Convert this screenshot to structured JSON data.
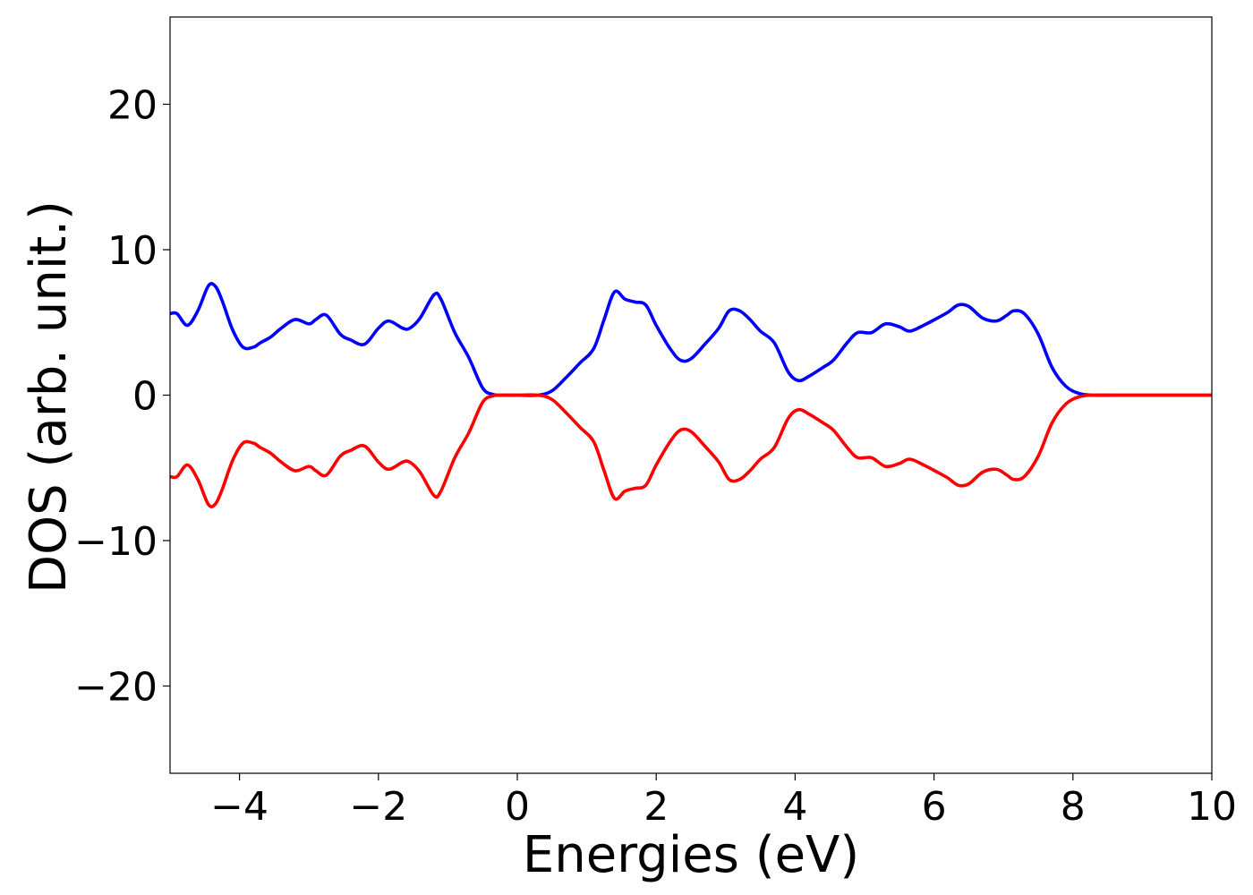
{
  "chart_data": {
    "type": "line",
    "title": "",
    "xlabel": "Energies (eV)",
    "ylabel": "DOS (arb. unit.)",
    "xlim": [
      -5,
      10
    ],
    "ylim": [
      -26,
      26
    ],
    "xticks": [
      -4,
      -2,
      0,
      2,
      4,
      6,
      8,
      10
    ],
    "xtick_labels": [
      "−4",
      "−2",
      "0",
      "2",
      "4",
      "6",
      "8",
      "10"
    ],
    "yticks": [
      20,
      10,
      0,
      -10,
      -20
    ],
    "ytick_labels": [
      "20",
      "10",
      "0",
      "−10",
      "−20"
    ],
    "grid": false,
    "legend": "none",
    "series": [
      {
        "color": "#0000ff",
        "x": [
          -5.0,
          -4.9,
          -4.75,
          -4.6,
          -4.45,
          -4.35,
          -4.25,
          -4.1,
          -3.95,
          -3.8,
          -3.7,
          -3.55,
          -3.4,
          -3.2,
          -3.0,
          -2.9,
          -2.75,
          -2.55,
          -2.4,
          -2.2,
          -2.0,
          -1.85,
          -1.65,
          -1.55,
          -1.4,
          -1.2,
          -1.1,
          -0.9,
          -0.7,
          -0.5,
          -0.35,
          -0.2,
          0.0,
          0.3,
          0.5,
          0.7,
          0.9,
          1.1,
          1.25,
          1.4,
          1.55,
          1.7,
          1.85,
          2.0,
          2.2,
          2.35,
          2.5,
          2.7,
          2.9,
          3.05,
          3.2,
          3.35,
          3.5,
          3.7,
          3.9,
          4.05,
          4.2,
          4.4,
          4.55,
          4.75,
          4.9,
          5.1,
          5.3,
          5.5,
          5.65,
          5.85,
          6.05,
          6.2,
          6.35,
          6.5,
          6.7,
          6.9,
          7.05,
          7.15,
          7.3,
          7.5,
          7.7,
          7.9,
          8.1,
          8.3,
          8.6,
          9.0,
          9.5,
          10.0
        ],
        "y": [
          5.6,
          5.6,
          4.8,
          5.8,
          7.5,
          7.5,
          6.5,
          4.5,
          3.3,
          3.3,
          3.6,
          4.0,
          4.6,
          5.2,
          4.9,
          5.2,
          5.5,
          4.2,
          3.8,
          3.5,
          4.6,
          5.1,
          4.6,
          4.6,
          5.3,
          6.9,
          6.6,
          4.3,
          2.6,
          0.5,
          0.05,
          0.0,
          0.0,
          0.0,
          0.3,
          1.2,
          2.2,
          3.2,
          5.2,
          7.1,
          6.6,
          6.4,
          6.2,
          4.8,
          3.2,
          2.4,
          2.5,
          3.5,
          4.6,
          5.8,
          5.8,
          5.2,
          4.4,
          3.6,
          1.6,
          1.0,
          1.3,
          1.9,
          2.4,
          3.6,
          4.3,
          4.3,
          4.9,
          4.7,
          4.4,
          4.8,
          5.3,
          5.7,
          6.2,
          6.1,
          5.3,
          5.1,
          5.5,
          5.8,
          5.6,
          4.2,
          1.9,
          0.6,
          0.1,
          0.0,
          0.0,
          0.0,
          0.0,
          0.0
        ]
      },
      {
        "color": "#ff0000",
        "x": [
          -5.0,
          -4.9,
          -4.75,
          -4.6,
          -4.45,
          -4.35,
          -4.25,
          -4.1,
          -3.95,
          -3.8,
          -3.7,
          -3.55,
          -3.4,
          -3.2,
          -3.0,
          -2.9,
          -2.75,
          -2.55,
          -2.4,
          -2.2,
          -2.0,
          -1.85,
          -1.65,
          -1.55,
          -1.4,
          -1.2,
          -1.1,
          -0.9,
          -0.7,
          -0.5,
          -0.35,
          -0.2,
          0.0,
          0.3,
          0.5,
          0.7,
          0.9,
          1.1,
          1.25,
          1.4,
          1.55,
          1.7,
          1.85,
          2.0,
          2.2,
          2.35,
          2.5,
          2.7,
          2.9,
          3.05,
          3.2,
          3.35,
          3.5,
          3.7,
          3.9,
          4.05,
          4.2,
          4.4,
          4.55,
          4.75,
          4.9,
          5.1,
          5.3,
          5.5,
          5.65,
          5.85,
          6.05,
          6.2,
          6.35,
          6.5,
          6.7,
          6.9,
          7.05,
          7.15,
          7.3,
          7.5,
          7.7,
          7.9,
          8.1,
          8.3,
          8.6,
          9.0,
          9.5,
          10.0
        ],
        "y": [
          -5.6,
          -5.6,
          -4.8,
          -5.8,
          -7.5,
          -7.5,
          -6.5,
          -4.5,
          -3.3,
          -3.3,
          -3.6,
          -4.0,
          -4.6,
          -5.2,
          -4.9,
          -5.2,
          -5.5,
          -4.2,
          -3.8,
          -3.5,
          -4.6,
          -5.1,
          -4.6,
          -4.6,
          -5.3,
          -6.9,
          -6.6,
          -4.3,
          -2.6,
          -0.5,
          -0.05,
          0.0,
          0.0,
          0.0,
          -0.3,
          -1.2,
          -2.2,
          -3.2,
          -5.2,
          -7.1,
          -6.6,
          -6.4,
          -6.2,
          -4.8,
          -3.2,
          -2.4,
          -2.5,
          -3.5,
          -4.6,
          -5.8,
          -5.8,
          -5.2,
          -4.4,
          -3.6,
          -1.6,
          -1.0,
          -1.3,
          -1.9,
          -2.4,
          -3.6,
          -4.3,
          -4.3,
          -4.9,
          -4.7,
          -4.4,
          -4.8,
          -5.3,
          -5.7,
          -6.2,
          -6.1,
          -5.3,
          -5.1,
          -5.5,
          -5.8,
          -5.6,
          -4.2,
          -1.9,
          -0.6,
          -0.1,
          0.0,
          0.0,
          0.0,
          0.0,
          0.0
        ]
      }
    ]
  }
}
